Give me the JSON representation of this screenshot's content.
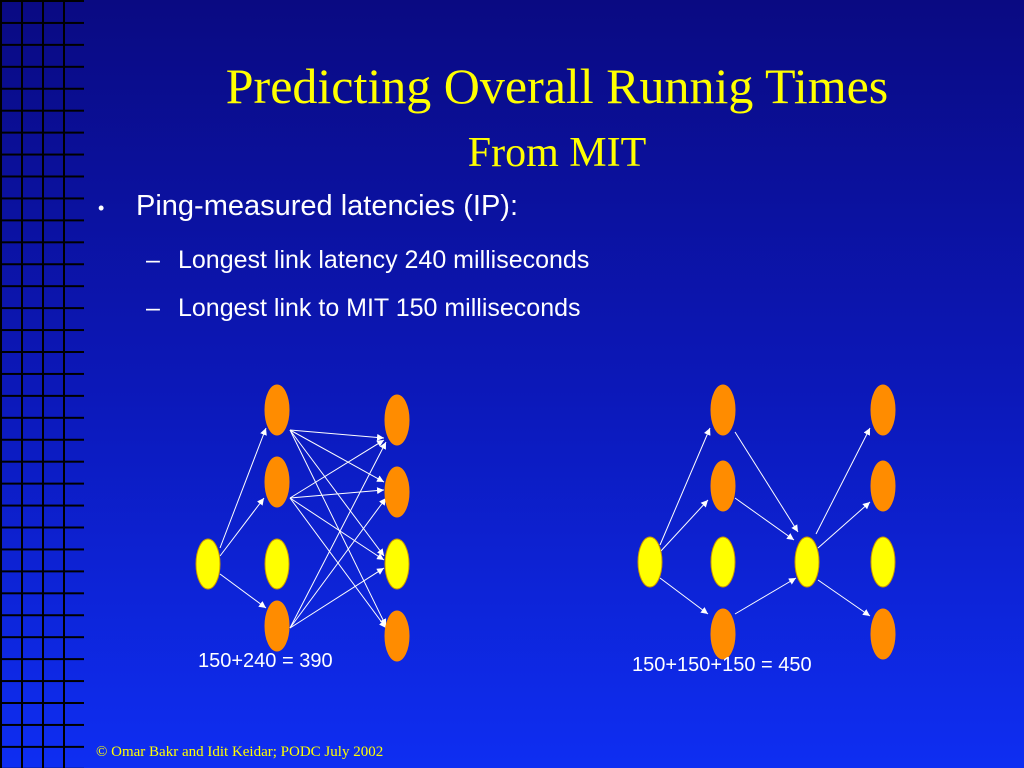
{
  "slide": {
    "title": "Predicting Overall Runnig Times",
    "subtitle": "From MIT",
    "bullet_marker": "•",
    "bullet": "Ping-measured latencies (IP):",
    "sub_marker": "–",
    "sub_bullets": [
      "Longest link latency 240 milliseconds",
      "Longest link to MIT 150 milliseconds"
    ],
    "left_equation": "150+240 = 390",
    "right_equation": "150+150+150 = 450",
    "footer": "© Omar Bakr and Idit Keidar; PODC July 2002"
  },
  "colors": {
    "background_top": "#0a0a82",
    "background_bottom": "#0e2ef2",
    "title": "#ffff00",
    "text": "#ffffff",
    "node_orange": "#ff8c00",
    "node_yellow": "#ffff00",
    "edge": "#ffffff"
  }
}
